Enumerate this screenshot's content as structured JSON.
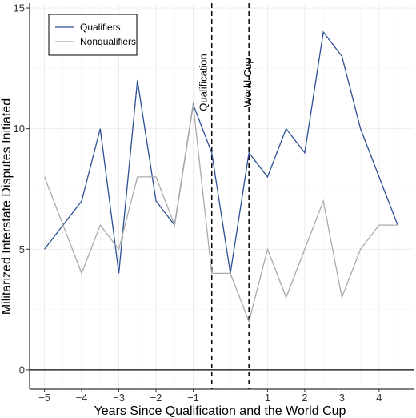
{
  "chart_data": {
    "type": "line",
    "xlabel": "Years Since Qualification and the World Cup",
    "ylabel": "Militarized Interstate Disputes Initiated",
    "xlim": [
      -5.4,
      4.95
    ],
    "ylim": [
      -0.8,
      15.2
    ],
    "x_ticks": [
      -5,
      -4,
      -3,
      -2,
      -1,
      1,
      2,
      3,
      4
    ],
    "x_tick_labels": [
      "−5",
      "−4",
      "−3",
      "−2",
      "−1",
      "1",
      "2",
      "3",
      "4"
    ],
    "y_ticks": [
      0,
      5,
      10,
      15
    ],
    "y_tick_labels": [
      "0",
      "5",
      "10",
      "15"
    ],
    "grid": true,
    "legend_position": "top-left",
    "series": [
      {
        "name": "Qualifiers",
        "color": "#2c4f94",
        "x": [
          -5,
          -4,
          -3.5,
          -3,
          -2.5,
          -2,
          -1.5,
          -1,
          -0.5,
          0,
          0.5,
          1,
          1.5,
          2,
          2.5,
          3,
          3.5,
          4,
          4.5
        ],
        "values": [
          5,
          7,
          10,
          4,
          12,
          7,
          6,
          11,
          9,
          4,
          9,
          8,
          10,
          9,
          14,
          13,
          10,
          8,
          6
        ]
      },
      {
        "name": "Nonqualifiers",
        "color": "#aaaaaa",
        "x": [
          -5,
          -4,
          -3.5,
          -3,
          -2.5,
          -2,
          -1.5,
          -1,
          -0.5,
          0,
          0.5,
          1,
          1.5,
          2,
          2.5,
          3,
          3.5,
          4,
          4.5
        ],
        "values": [
          8,
          4,
          6,
          5,
          8,
          8,
          6,
          11,
          4,
          4,
          2,
          5,
          3,
          5,
          7,
          3,
          5,
          6,
          6
        ]
      }
    ],
    "reference_lines": [
      {
        "x": -0.5,
        "label": "Qualification"
      },
      {
        "x": 0.5,
        "label": "World Cup"
      }
    ]
  }
}
